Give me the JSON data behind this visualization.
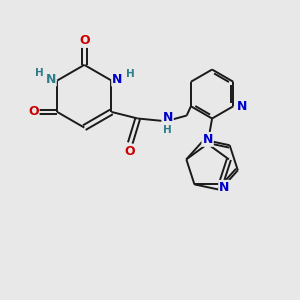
{
  "bg_color": "#e8e8e8",
  "bond_color": "#1a1a1a",
  "N_teal": "#2e7d8a",
  "N_blue": "#0000cc",
  "O_red": "#cc0000",
  "lw": 1.4,
  "fs": 8.5,
  "dpi": 100,
  "figsize": [
    3.0,
    3.0
  ],
  "xlim": [
    0,
    10
  ],
  "ylim": [
    0,
    10
  ]
}
